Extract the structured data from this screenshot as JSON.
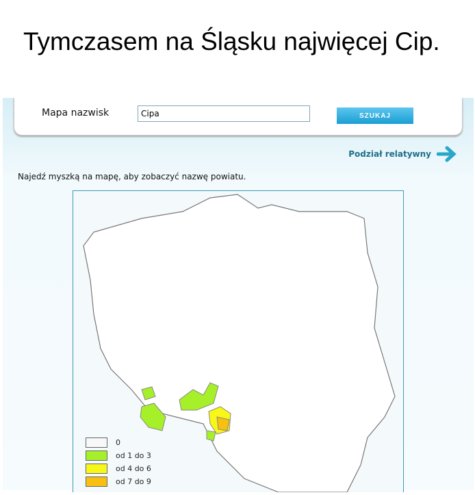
{
  "caption": "Tymczasem na Śląsku najwięcej Cip.",
  "search": {
    "label": "Mapa nazwisk",
    "value": "Cipa",
    "button": "SZUKAJ"
  },
  "relative_link": "Podział relatywny",
  "hint": "Najedź myszką na mapę, aby zobaczyć nazwę powiatu.",
  "legend": [
    {
      "label": "0",
      "color": "#f8f8f8"
    },
    {
      "label": "od 1 do 3",
      "color": "#a6f02a"
    },
    {
      "label": "od 4 do 6",
      "color": "#f8f818"
    },
    {
      "label": "od 7 do 9",
      "color": "#f8c010"
    }
  ]
}
